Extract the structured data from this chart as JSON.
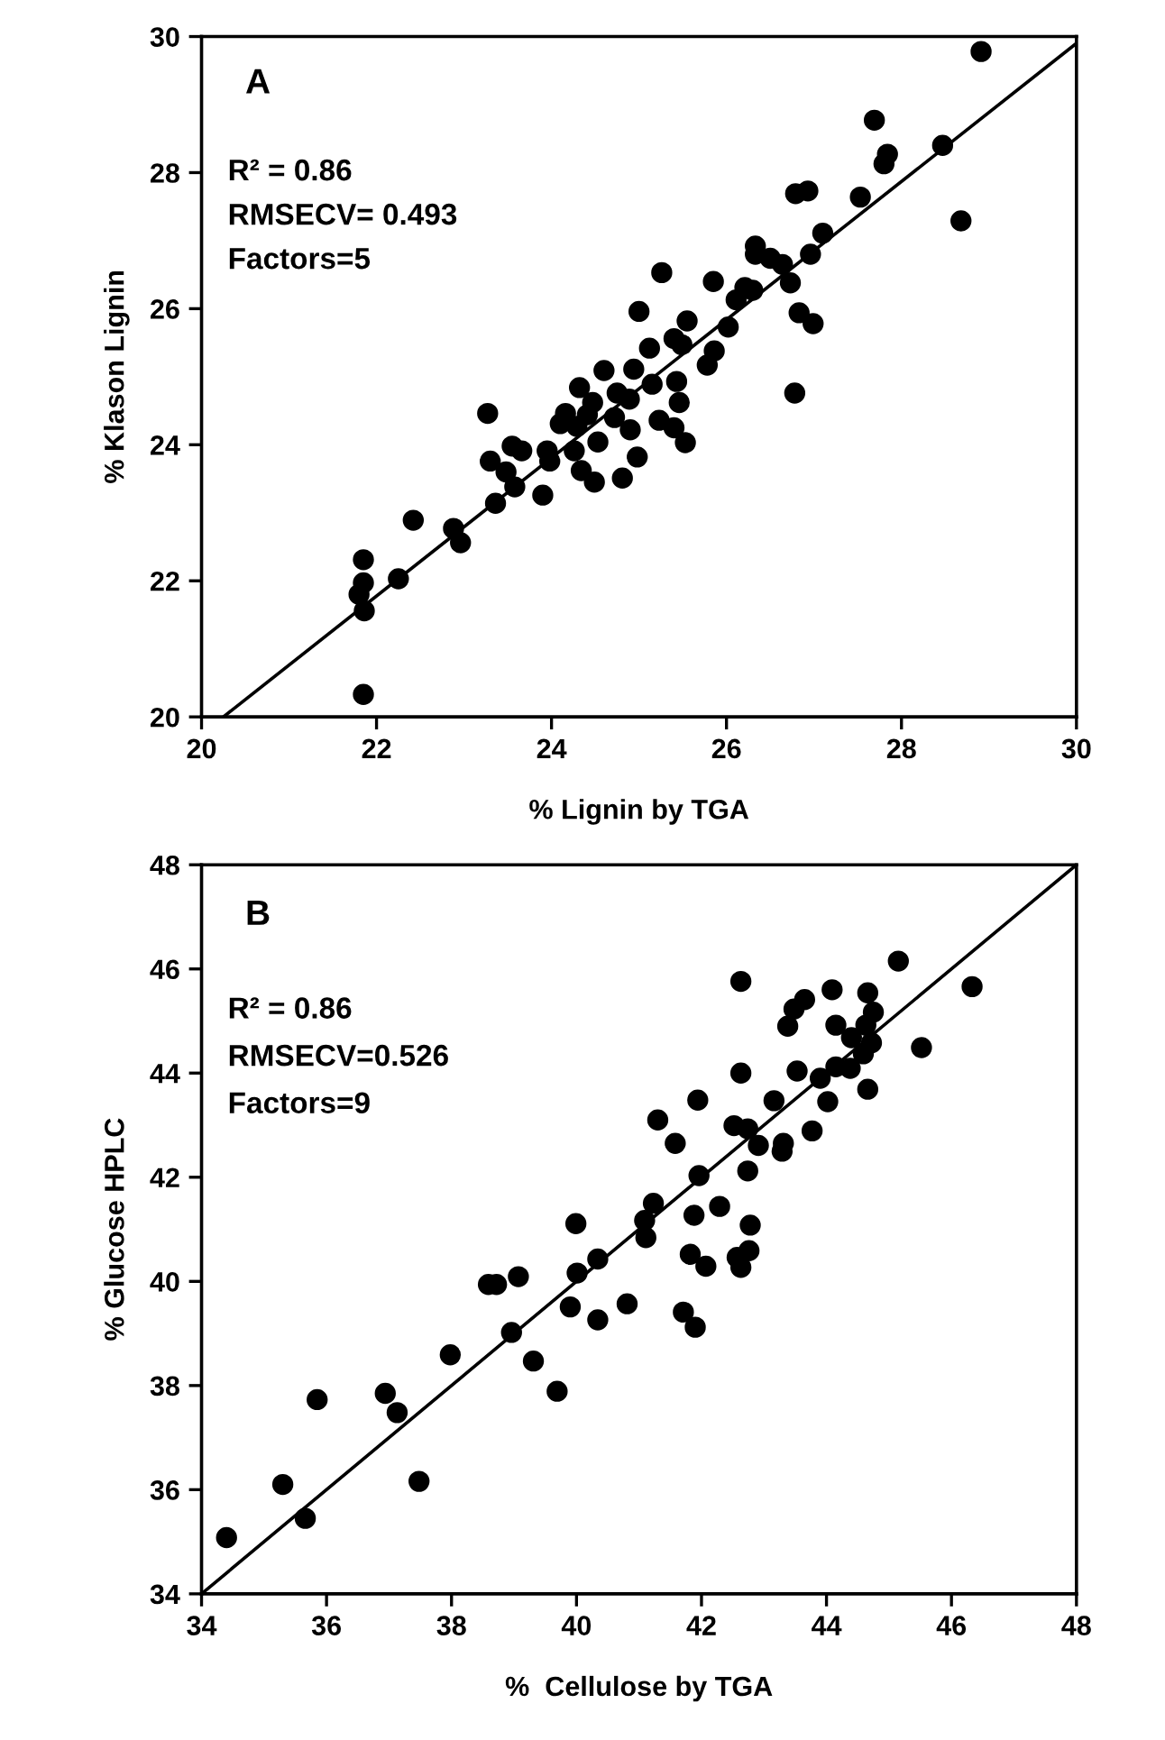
{
  "chart_data": [
    {
      "type": "scatter",
      "xlabel": "% Lignin by TGA",
      "ylabel": "% Klason Lignin",
      "xlim": [
        20,
        30
      ],
      "ylim": [
        20,
        30
      ],
      "xticks": [
        20,
        22,
        24,
        26,
        28,
        30
      ],
      "yticks": [
        20,
        22,
        24,
        26,
        28,
        30
      ],
      "annotations": [
        "A",
        "R² = 0.86",
        "RMSECV= 0.493",
        "Factors=5"
      ],
      "series": [
        {
          "type": "scatter",
          "marker": "circle",
          "color": "#000000",
          "x": [
            21.85,
            21.85,
            21.8,
            21.86,
            21.85,
            22.25,
            22.42,
            22.88,
            22.96,
            23.27,
            23.3,
            23.36,
            23.48,
            23.58,
            23.55,
            23.66,
            23.9,
            23.95,
            23.98,
            24.1,
            24.16,
            24.32,
            24.29,
            24.26,
            24.34,
            24.49,
            24.41,
            24.47,
            24.53,
            24.6,
            24.72,
            24.75,
            24.81,
            24.89,
            24.9,
            25.0,
            24.98,
            24.94,
            25.12,
            25.15,
            25.26,
            25.23,
            25.4,
            25.43,
            25.46,
            25.4,
            25.55,
            25.53,
            25.49,
            25.78,
            25.85,
            25.86,
            26.02,
            26.11,
            26.21,
            26.3,
            26.33,
            26.33,
            26.5,
            26.64,
            26.73,
            26.78,
            26.83,
            26.79,
            26.93,
            26.99,
            26.96,
            27.1,
            27.53,
            27.69,
            27.8,
            27.84,
            28.47,
            28.68,
            28.91
          ],
          "values": [
            22.31,
            21.97,
            21.8,
            21.56,
            20.33,
            22.03,
            22.89,
            22.77,
            22.56,
            24.46,
            23.76,
            23.14,
            23.6,
            23.38,
            23.98,
            23.91,
            23.26,
            23.91,
            23.76,
            24.31,
            24.46,
            24.84,
            24.27,
            23.91,
            23.62,
            23.45,
            24.44,
            24.62,
            24.04,
            25.09,
            24.4,
            24.76,
            23.51,
            24.67,
            24.22,
            25.96,
            23.82,
            25.11,
            25.42,
            24.89,
            26.53,
            24.36,
            25.56,
            24.93,
            24.62,
            24.25,
            25.82,
            24.03,
            25.47,
            25.17,
            26.4,
            25.38,
            25.73,
            26.13,
            26.31,
            26.27,
            26.92,
            26.8,
            26.74,
            26.65,
            26.38,
            24.76,
            25.94,
            27.69,
            27.73,
            25.78,
            26.8,
            27.11,
            27.64,
            28.77,
            28.13,
            28.27,
            28.4,
            27.29,
            29.78
          ]
        },
        {
          "type": "line",
          "color": "#000000",
          "x": [
            20.25,
            30
          ],
          "values": [
            20,
            29.9
          ]
        }
      ]
    },
    {
      "type": "scatter",
      "xlabel": "%  Cellulose by TGA",
      "ylabel": "% Glucose HPLC",
      "xlim": [
        34,
        48
      ],
      "ylim": [
        34,
        48
      ],
      "xticks": [
        34,
        36,
        38,
        40,
        42,
        44,
        46,
        48
      ],
      "yticks": [
        34,
        36,
        38,
        40,
        42,
        44,
        46,
        48
      ],
      "annotations": [
        "B",
        "R² = 0.86",
        "RMSECV=0.526",
        "Factors=9"
      ],
      "series": [
        {
          "type": "scatter",
          "marker": "circle",
          "color": "#000000",
          "x": [
            34.4,
            35.3,
            35.66,
            35.85,
            36.94,
            37.13,
            37.48,
            37.98,
            38.59,
            38.72,
            39.07,
            38.96,
            39.31,
            39.69,
            39.99,
            40.01,
            39.9,
            40.34,
            40.34,
            40.81,
            41.23,
            41.09,
            41.11,
            41.3,
            41.58,
            41.94,
            41.96,
            41.88,
            41.82,
            42.07,
            41.71,
            41.9,
            42.29,
            42.63,
            42.63,
            42.52,
            42.74,
            42.74,
            42.78,
            42.76,
            42.57,
            42.63,
            42.91,
            43.16,
            43.31,
            43.29,
            43.77,
            43.38,
            43.48,
            43.65,
            43.53,
            43.9,
            44.02,
            44.09,
            44.15,
            44.15,
            44.38,
            44.4,
            44.59,
            44.66,
            44.66,
            44.75,
            44.63,
            44.72,
            45.15,
            45.52,
            46.33
          ],
          "values": [
            35.08,
            36.1,
            35.45,
            37.73,
            37.85,
            37.48,
            36.16,
            38.59,
            39.94,
            39.94,
            40.09,
            39.02,
            38.47,
            37.89,
            41.11,
            40.16,
            39.51,
            40.43,
            39.26,
            39.57,
            41.5,
            41.17,
            40.84,
            43.1,
            42.65,
            43.48,
            42.03,
            41.27,
            40.52,
            40.29,
            39.41,
            39.12,
            41.44,
            45.76,
            44.0,
            42.99,
            42.93,
            42.12,
            41.08,
            40.59,
            40.46,
            40.27,
            42.61,
            43.47,
            42.65,
            42.5,
            42.89,
            44.9,
            45.23,
            45.41,
            44.04,
            43.9,
            43.45,
            45.6,
            44.92,
            44.12,
            44.09,
            44.68,
            44.37,
            43.69,
            45.54,
            45.17,
            44.92,
            44.58,
            46.15,
            44.49,
            45.66
          ]
        },
        {
          "type": "line",
          "color": "#000000",
          "x": [
            34,
            48
          ],
          "values": [
            34,
            48
          ]
        }
      ]
    }
  ]
}
